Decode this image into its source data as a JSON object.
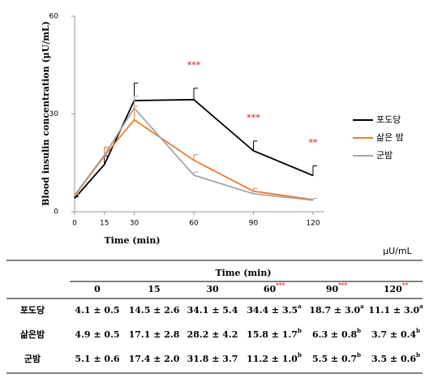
{
  "chart_data": {
    "type": "line",
    "x_label": "Time (min)",
    "y_label": "Blood  insulin concentration (μU/mL)",
    "x": [
      0,
      15,
      30,
      60,
      90,
      120
    ],
    "xlim": [
      0,
      120
    ],
    "xticks": [
      0,
      15,
      30,
      60,
      90,
      120
    ],
    "ylim": [
      0,
      60
    ],
    "yticks": [
      0,
      30,
      60
    ],
    "series": [
      {
        "name": "포도당",
        "color": "#000000",
        "values": [
          4.1,
          14.5,
          34.1,
          34.4,
          18.7,
          11.1
        ],
        "errors": [
          0.5,
          2.6,
          5.4,
          3.5,
          3.0,
          3.0
        ]
      },
      {
        "name": "삶은 밤",
        "color": "#ed7d31",
        "values": [
          4.9,
          17.1,
          28.2,
          15.8,
          6.3,
          3.7
        ],
        "errors": [
          0.5,
          2.8,
          4.2,
          1.7,
          0.8,
          0.4
        ]
      },
      {
        "name": "군밤",
        "color": "#a5a5a5",
        "values": [
          5.1,
          17.4,
          31.8,
          11.2,
          5.5,
          3.5
        ],
        "errors": [
          0.6,
          2.0,
          3.7,
          1.0,
          0.7,
          0.6
        ]
      }
    ],
    "annotations": [
      {
        "x": 60,
        "text": "***"
      },
      {
        "x": 90,
        "text": "***"
      },
      {
        "x": 120,
        "text": "**"
      }
    ],
    "annotation_color": "#e02020",
    "legend": "right"
  },
  "table": {
    "unit": "μU/mL",
    "group_header": "Time (min)",
    "columns": [
      {
        "label": "0"
      },
      {
        "label": "15"
      },
      {
        "label": "30"
      },
      {
        "label": "60",
        "sup": "***"
      },
      {
        "label": "90",
        "sup": "***"
      },
      {
        "label": "120",
        "sup": "**"
      }
    ],
    "rows": [
      {
        "label": "포도당",
        "cells": [
          {
            "text": "4.1 ± 0.5"
          },
          {
            "text": "14.5 ± 2.6"
          },
          {
            "text": "34.1 ± 5.4"
          },
          {
            "text": "34.4 ± 3.5",
            "sup": "a"
          },
          {
            "text": "18.7 ± 3.0",
            "sup": "a"
          },
          {
            "text": "11.1 ± 3.0",
            "sup": "a"
          }
        ]
      },
      {
        "label": "삶은밤",
        "cells": [
          {
            "text": "4.9 ± 0.5"
          },
          {
            "text": "17.1 ± 2.8"
          },
          {
            "text": "28.2 ± 4.2"
          },
          {
            "text": "15.8 ± 1.7",
            "sup": "b"
          },
          {
            "text": "6.3 ± 0.8",
            "sup": "b"
          },
          {
            "text": "3.7 ± 0.4",
            "sup": "b"
          }
        ]
      },
      {
        "label": "군밤",
        "cells": [
          {
            "text": "5.1 ± 0.6"
          },
          {
            "text": "17.4 ± 2.0"
          },
          {
            "text": "31.8 ± 3.7"
          },
          {
            "text": "11.2 ± 1.0",
            "sup": "b"
          },
          {
            "text": "5.5 ± 0.7",
            "sup": "b"
          },
          {
            "text": "3.5 ± 0.6",
            "sup": "b"
          }
        ]
      }
    ]
  }
}
